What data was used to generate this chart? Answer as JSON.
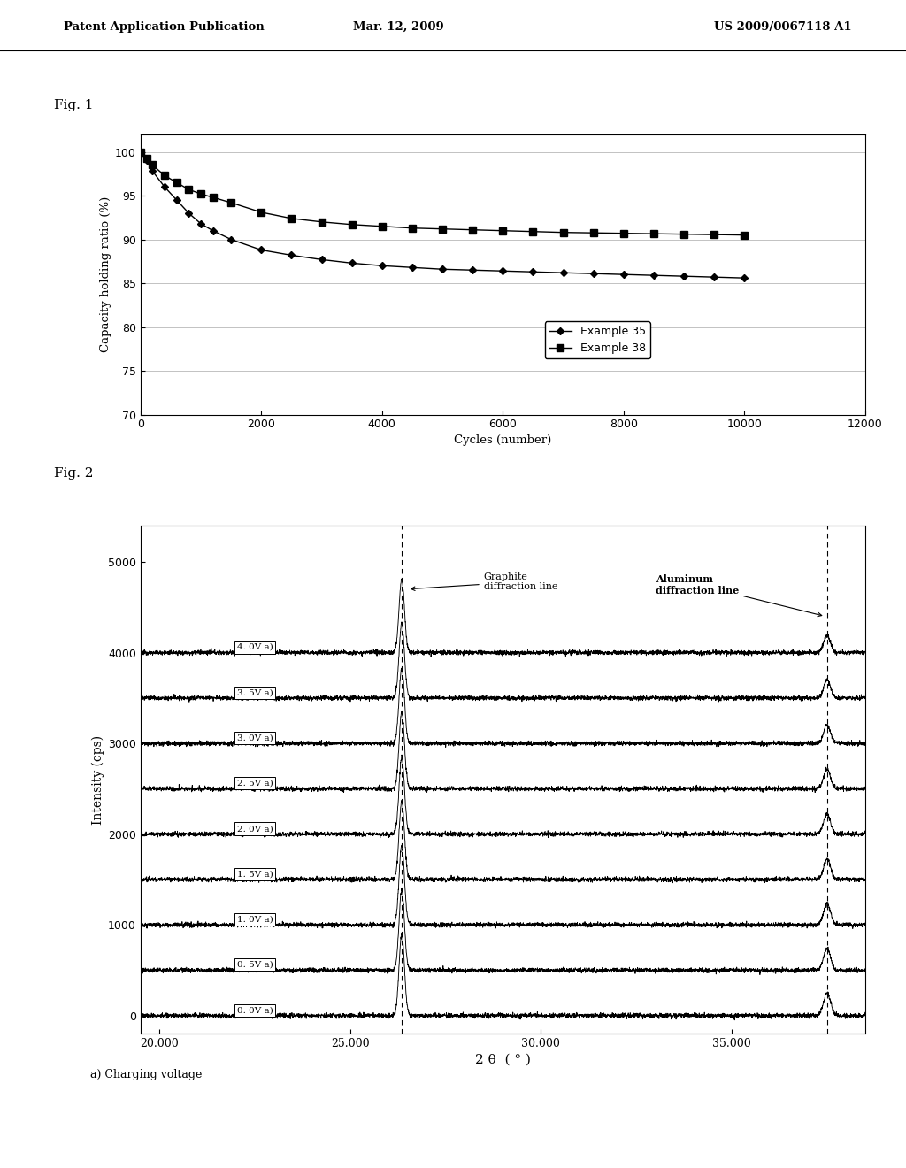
{
  "header_left": "Patent Application Publication",
  "header_mid": "Mar. 12, 2009",
  "header_right": "US 2009/0067118 A1",
  "fig1_label": "Fig. 1",
  "fig2_label": "Fig. 2",
  "fig1": {
    "xlabel": "Cycles (number)",
    "ylabel": "Capacity holding ratio (%)",
    "xlim": [
      0,
      12000
    ],
    "ylim": [
      70,
      102
    ],
    "xticks": [
      0,
      2000,
      4000,
      6000,
      8000,
      10000,
      12000
    ],
    "yticks": [
      70,
      75,
      80,
      85,
      90,
      95,
      100
    ],
    "example35_x": [
      0,
      100,
      200,
      400,
      600,
      800,
      1000,
      1200,
      1500,
      2000,
      2500,
      3000,
      3500,
      4000,
      4500,
      5000,
      5500,
      6000,
      6500,
      7000,
      7500,
      8000,
      8500,
      9000,
      9500,
      10000
    ],
    "example35_y": [
      100,
      99.0,
      97.8,
      96.0,
      94.5,
      93.0,
      91.8,
      91.0,
      90.0,
      88.8,
      88.2,
      87.7,
      87.3,
      87.0,
      86.8,
      86.6,
      86.5,
      86.4,
      86.3,
      86.2,
      86.1,
      86.0,
      85.9,
      85.8,
      85.7,
      85.6
    ],
    "example38_x": [
      0,
      100,
      200,
      400,
      600,
      800,
      1000,
      1200,
      1500,
      2000,
      2500,
      3000,
      3500,
      4000,
      4500,
      5000,
      5500,
      6000,
      6500,
      7000,
      7500,
      8000,
      8500,
      9000,
      9500,
      10000
    ],
    "example38_y": [
      100,
      99.3,
      98.5,
      97.3,
      96.5,
      95.7,
      95.2,
      94.8,
      94.2,
      93.1,
      92.4,
      92.0,
      91.7,
      91.5,
      91.3,
      91.2,
      91.1,
      91.0,
      90.9,
      90.8,
      90.75,
      90.7,
      90.65,
      90.6,
      90.55,
      90.5
    ],
    "legend_example35": "Example 35",
    "legend_example38": "Example 38"
  },
  "fig2": {
    "xlabel": "2 θ  ( ° )",
    "ylabel": "Intensity (cps)",
    "xlim": [
      19.5,
      38.5
    ],
    "ylim": [
      -200,
      5400
    ],
    "xticks": [
      20.0,
      25.0,
      30.0,
      35.0
    ],
    "xtick_labels": [
      "20.000",
      "25.000",
      "30.000",
      "35.000"
    ],
    "yticks": [
      0,
      1000,
      2000,
      3000,
      4000,
      5000
    ],
    "graphite_line_x": 26.35,
    "aluminum_line_x": 37.5,
    "graphite_label": "Graphite\ndiffraction line",
    "aluminum_label": "Aluminum\ndiffraction line",
    "voltage_labels": [
      "4. 0V a)",
      "3. 5V a)",
      "3. 0V a)",
      "2. 5V a)",
      "2. 0V a)",
      "1. 5V a)",
      "1. 0V a)",
      "0. 5V a)",
      "0. 0V a)"
    ],
    "voltage_offsets": [
      4000,
      3500,
      3000,
      2500,
      2000,
      1500,
      1000,
      500,
      0
    ],
    "footnote": "a) Charging voltage",
    "base_noise_amplitude": 12,
    "graphite_peak_height": 900,
    "aluminum_peak_height": 250
  },
  "bg_color": "#ffffff",
  "text_color": "#000000",
  "line_color": "#000000"
}
